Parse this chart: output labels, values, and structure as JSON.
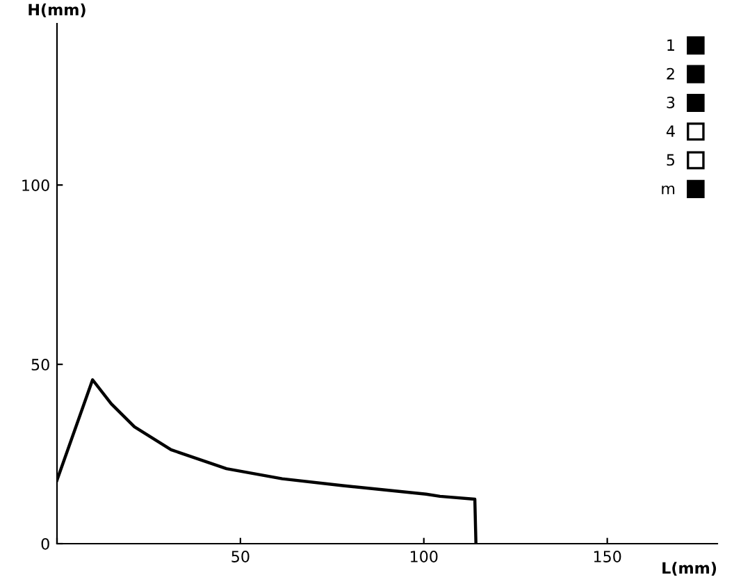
{
  "chart_data": {
    "type": "line",
    "xlabel": "L(mm)",
    "ylabel": "H(mm)",
    "xlim": [
      0,
      180
    ],
    "ylim": [
      0,
      145
    ],
    "xticks": [
      {
        "value": 0,
        "label": null
      },
      50,
      100,
      150
    ],
    "yticks": [
      0,
      50,
      100
    ],
    "grid": false,
    "legend": "top right",
    "line_style": "solid",
    "marker": "none",
    "series": [
      {
        "x": [
          0,
          9.7,
          14.8,
          21.1,
          31.1,
          46.2,
          61.4,
          77.9,
          100.6,
          104.4,
          113.9,
          114.2
        ],
        "values": [
          17.7,
          45.7,
          39.0,
          32.6,
          26.2,
          20.9,
          18.1,
          16.2,
          13.8,
          13.2,
          12.4,
          0
        ],
        "color": "#000000"
      },
      {
        "name": "1",
        "type": "bar",
        "color": "#000000"
      },
      {
        "name": "2",
        "type": "bar",
        "color": "#000000"
      },
      {
        "name": "3",
        "type": "bar",
        "color": "#000000"
      },
      {
        "name": "4",
        "type": "bar",
        "color": "#ffffff"
      },
      {
        "name": "5",
        "type": "bar",
        "color": "#ffffff"
      },
      {
        "name": "m",
        "type": "bar",
        "color": "#000000"
      }
    ]
  }
}
